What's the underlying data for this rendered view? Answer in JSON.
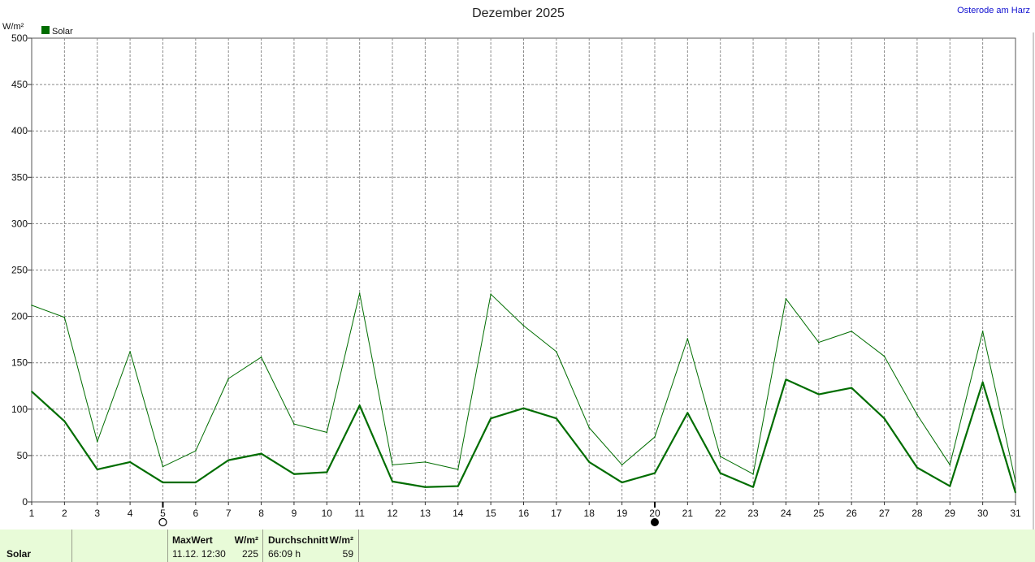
{
  "title": "Dezember 2025",
  "location": "Osterode am Harz",
  "unit": "W/m²",
  "legend": {
    "label": "Solar",
    "color": "#006d00"
  },
  "chart_data": {
    "type": "line",
    "title": "Dezember 2025",
    "ylabel": "W/m²",
    "ylim": [
      0,
      500
    ],
    "yticks": [
      0,
      50,
      100,
      150,
      200,
      250,
      300,
      350,
      400,
      450,
      500
    ],
    "x": [
      1,
      2,
      3,
      4,
      5,
      6,
      7,
      8,
      9,
      10,
      11,
      12,
      13,
      14,
      15,
      16,
      17,
      18,
      19,
      20,
      21,
      22,
      23,
      24,
      25,
      26,
      27,
      28,
      29,
      30,
      31
    ],
    "grid": true,
    "legend_position": "top-left",
    "series": [
      {
        "name": "Solar",
        "kind": "average",
        "color": "#006d00",
        "values": [
          119,
          87,
          35,
          43,
          21,
          21,
          45,
          52,
          30,
          32,
          104,
          22,
          16,
          17,
          90,
          101,
          90,
          43,
          21,
          31,
          96,
          31,
          16,
          132,
          116,
          123,
          90,
          37,
          17,
          129,
          10
        ]
      },
      {
        "kind": "maximum",
        "color": "#006d00",
        "values": [
          212,
          199,
          65,
          162,
          38,
          55,
          133,
          156,
          84,
          75,
          225,
          40,
          43,
          35,
          224,
          190,
          162,
          80,
          40,
          70,
          176,
          49,
          30,
          219,
          172,
          184,
          157,
          94,
          40,
          184,
          22
        ]
      }
    ],
    "moon_phases": [
      {
        "day": 5,
        "phase": "full-moon"
      },
      {
        "day": 20,
        "phase": "new-moon"
      }
    ]
  },
  "footer": {
    "series_label": "Solar",
    "max_header": "MaxWert",
    "max_unit": "W/m²",
    "max_time": "11.12.  12:30",
    "max_value": "225",
    "avg_header": "Durchschnitt",
    "avg_unit": "W/m²",
    "avg_duration": "66:09 h",
    "avg_value": "59"
  }
}
